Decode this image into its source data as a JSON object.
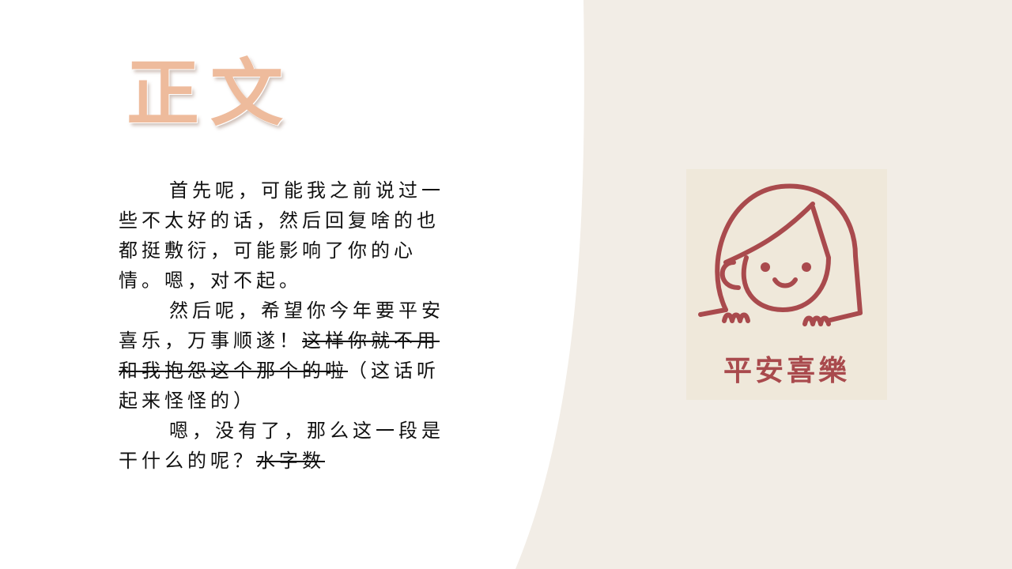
{
  "title": "正文",
  "paragraphs": [
    {
      "segments": [
        {
          "text": "首先呢，可能我之前说过一些不太好的话，然后回复啥的也都挺敷衍，可能影响了你的心情。嗯，对不起。",
          "struck": false
        }
      ]
    },
    {
      "segments": [
        {
          "text": "然后呢，希望你今年要平安喜乐，万事顺遂！",
          "struck": false
        },
        {
          "text": "这样你就不用和我抱怨这个那个的啦",
          "struck": true
        },
        {
          "text": "（这话听起来怪怪的）",
          "struck": false
        }
      ]
    },
    {
      "segments": [
        {
          "text": "嗯，没有了，那么这一段是干什么的呢？",
          "struck": false
        },
        {
          "text": "水字数",
          "struck": true
        }
      ]
    }
  ],
  "logo": {
    "text": "平安喜樂",
    "color": "#a94a4d",
    "icon": "girl-face-icon"
  },
  "colors": {
    "background": "#f2ede6",
    "panel": "#ffffff",
    "title": "#eebb9c"
  }
}
